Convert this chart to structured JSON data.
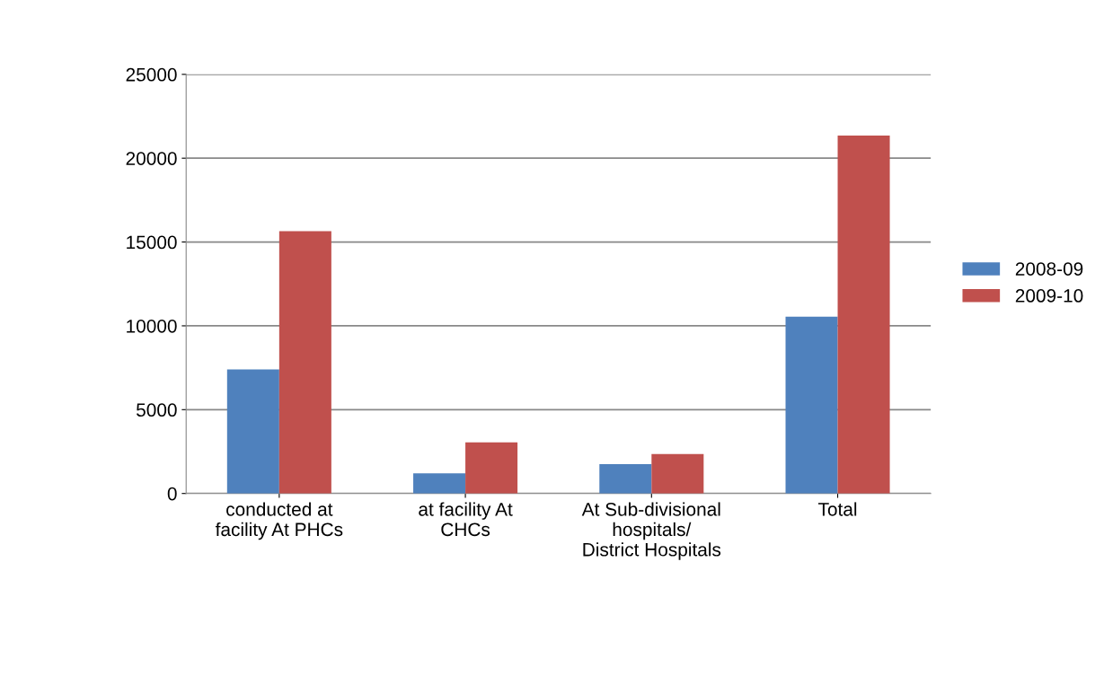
{
  "chart_data": {
    "type": "bar",
    "categories": [
      "conducted at\nfacility At PHCs",
      "at facility At\nCHCs",
      "At Sub-divisional\nhospitals/\nDistrict Hospitals",
      "Total"
    ],
    "series": [
      {
        "name": "2008-09",
        "color": "#4f81bd",
        "values": [
          7400,
          1200,
          1750,
          10550
        ]
      },
      {
        "name": "2009-10",
        "color": "#c0504d",
        "values": [
          15650,
          3050,
          2350,
          21350
        ]
      }
    ],
    "ylim": [
      0,
      25000
    ],
    "yticks": [
      0,
      5000,
      10000,
      15000,
      20000,
      25000
    ],
    "grid": "y",
    "legend": "right"
  }
}
